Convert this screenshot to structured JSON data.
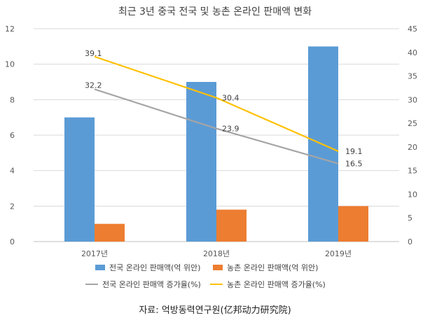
{
  "chart_data": {
    "type": "bar",
    "title": "최근 3년 중국 전국 및 농촌 온라인 판매액 변화",
    "categories": [
      "2017년",
      "2018년",
      "2019년"
    ],
    "series": [
      {
        "name": "전국 온라인 판매액(억 위안)",
        "kind": "bar",
        "axis": "left",
        "color": "#5b9bd5",
        "values": [
          7,
          9,
          11
        ]
      },
      {
        "name": "농촌 온라인 판매액(억 위안)",
        "kind": "bar",
        "axis": "left",
        "color": "#ed7d31",
        "values": [
          1,
          1.8,
          2
        ]
      },
      {
        "name": "전국 온라인 판매액 증가율(%)",
        "kind": "line",
        "axis": "right",
        "color": "#a5a5a5",
        "values": [
          32.2,
          23.9,
          16.5
        ],
        "labels": [
          "32.2",
          "23.9",
          "16.5"
        ]
      },
      {
        "name": "농촌 온라인 판매액 증가율(%)",
        "kind": "line",
        "axis": "right",
        "color": "#ffc000",
        "values": [
          39.1,
          30.4,
          19.1
        ],
        "labels": [
          "39.1",
          "30.4",
          "19.1"
        ]
      }
    ],
    "y_left": {
      "min": 0,
      "max": 12,
      "ticks": [
        "0",
        "2",
        "4",
        "6",
        "8",
        "10",
        "12"
      ]
    },
    "y_right": {
      "min": 0,
      "max": 45,
      "ticks": [
        "0",
        "5",
        "10",
        "15",
        "20",
        "25",
        "30",
        "35",
        "40",
        "45"
      ]
    },
    "grid": true,
    "legend_position": "bottom",
    "source": "자료: 억방동력연구원(亿邦动力研究院)"
  }
}
